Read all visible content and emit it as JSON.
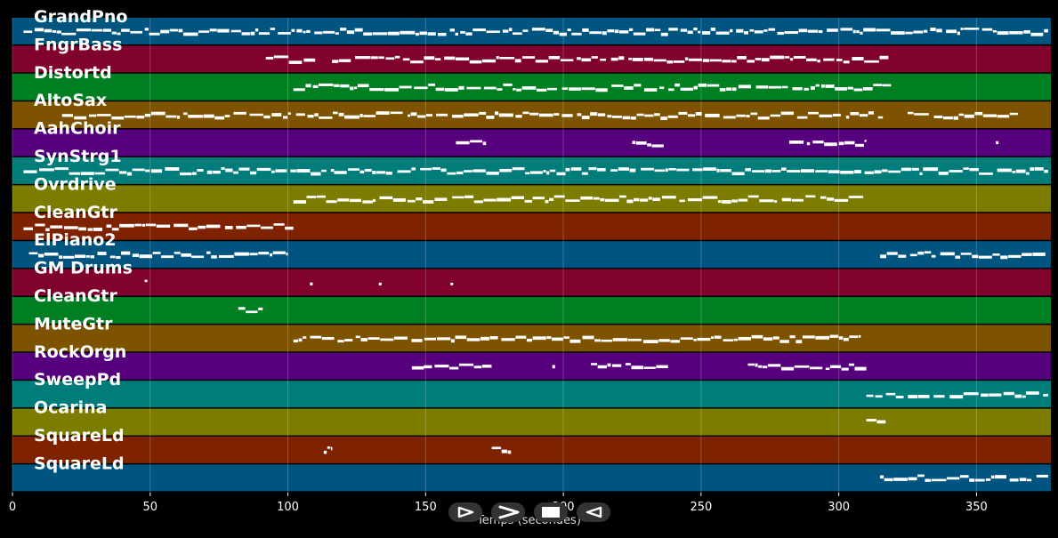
{
  "colors": {
    "background": "#000000",
    "row_palette": [
      "#005480",
      "#80002e",
      "#007f22",
      "#7d5300",
      "#57007d",
      "#007c7a",
      "#7b7c00",
      "#7e2200"
    ],
    "note": "#ffffff",
    "tick_label": "#ffffff",
    "track_label": "#ffffff"
  },
  "chart_data": {
    "type": "piano-roll",
    "xlabel": "Temps (secondes)",
    "xlim": [
      0,
      377
    ],
    "x_ticks": [
      0,
      50,
      100,
      150,
      200,
      250,
      300,
      350
    ],
    "grid": true,
    "tracks": [
      {
        "label": "GrandPno",
        "spans": [
          [
            4,
            376
          ]
        ]
      },
      {
        "label": "FngrBass",
        "spans": [
          [
            92,
            110
          ],
          [
            116,
            318
          ]
        ]
      },
      {
        "label": "Distortd",
        "spans": [
          [
            102,
            319
          ]
        ]
      },
      {
        "label": "AltoSax",
        "spans": [
          [
            18,
            316
          ],
          [
            325,
            365
          ]
        ]
      },
      {
        "label": "AahChoir",
        "spans": [
          [
            161,
            172
          ],
          [
            225,
            238
          ],
          [
            282,
            310
          ],
          [
            357,
            358
          ]
        ]
      },
      {
        "label": "SynStrg1",
        "spans": [
          [
            4,
            376
          ]
        ]
      },
      {
        "label": "Ovrdrive",
        "spans": [
          [
            102,
            309
          ]
        ]
      },
      {
        "label": "CleanGtr",
        "spans": [
          [
            4,
            102
          ]
        ]
      },
      {
        "label": "ElPiano2",
        "spans": [
          [
            6,
            100
          ],
          [
            315,
            375
          ]
        ]
      },
      {
        "label": "GM Drums",
        "spans": [
          [
            48,
            49
          ],
          [
            108,
            109
          ],
          [
            133,
            134
          ],
          [
            159,
            160
          ]
        ]
      },
      {
        "label": "CleanGtr",
        "spans": [
          [
            82,
            91
          ]
        ]
      },
      {
        "label": "MuteGtr",
        "spans": [
          [
            102,
            308
          ]
        ]
      },
      {
        "label": "RockOrgn",
        "spans": [
          [
            145,
            174
          ],
          [
            196,
            197
          ],
          [
            210,
            238
          ],
          [
            267,
            310
          ]
        ]
      },
      {
        "label": "SweepPd",
        "spans": [
          [
            310,
            376
          ]
        ]
      },
      {
        "label": "Ocarina",
        "spans": [
          [
            310,
            317
          ]
        ]
      },
      {
        "label": "SquareLd",
        "spans": [
          [
            113,
            116
          ],
          [
            174,
            181
          ]
        ]
      },
      {
        "label": "SquareLd",
        "spans": [
          [
            315,
            376
          ]
        ]
      }
    ]
  },
  "controls": [
    {
      "icon": "play-outline-icon",
      "label": "play"
    },
    {
      "icon": "fast-forward-icon",
      "label": "forward"
    },
    {
      "icon": "stop-icon",
      "label": "stop"
    },
    {
      "icon": "rewind-icon",
      "label": "rewind"
    }
  ]
}
